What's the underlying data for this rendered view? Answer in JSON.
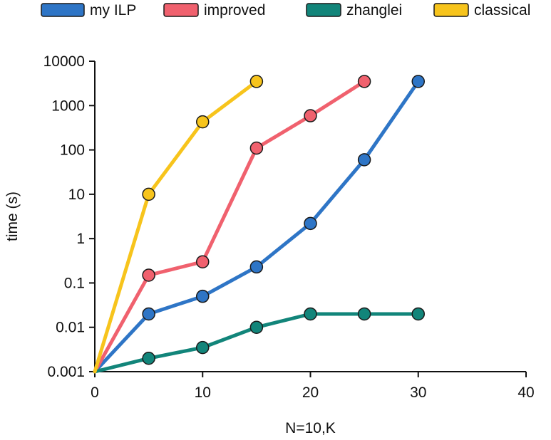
{
  "chart_data": {
    "type": "line",
    "title": "",
    "xlabel": "N=10,K",
    "ylabel": "time  (s)",
    "xlim": [
      0,
      40
    ],
    "ylim": [
      0.001,
      10000
    ],
    "yscale": "log",
    "grid": false,
    "legend_position": "top",
    "x_ticks": [
      0,
      10,
      20,
      30,
      40
    ],
    "x_tick_labels": [
      "0",
      "10",
      "20",
      "30",
      "40"
    ],
    "y_ticks": [
      0.001,
      0.01,
      0.1,
      1,
      10,
      100,
      1000,
      10000
    ],
    "y_tick_labels": [
      "0.001",
      "0.01",
      "0.1",
      "1",
      "10",
      "100",
      "1000",
      "10000"
    ],
    "series": [
      {
        "name": "my ILP",
        "color": "#2e75c6",
        "x": [
          0,
          5,
          10,
          15,
          20,
          25,
          30
        ],
        "values": [
          0.001,
          0.02,
          0.05,
          0.23,
          2.2,
          60,
          3500
        ]
      },
      {
        "name": "improved",
        "color": "#f0616e",
        "x": [
          0,
          5,
          10,
          15,
          20,
          25
        ],
        "values": [
          0.001,
          0.15,
          0.3,
          110,
          590,
          3500
        ]
      },
      {
        "name": "zhanglei",
        "color": "#12857a",
        "x": [
          0,
          5,
          10,
          15,
          20,
          25,
          30
        ],
        "values": [
          0.001,
          0.002,
          0.0035,
          0.01,
          0.02,
          0.02,
          0.02
        ]
      },
      {
        "name": "classical",
        "color": "#f7c41c",
        "x": [
          0,
          5,
          10,
          15
        ],
        "values": [
          0.001,
          10,
          430,
          3500
        ]
      }
    ]
  }
}
